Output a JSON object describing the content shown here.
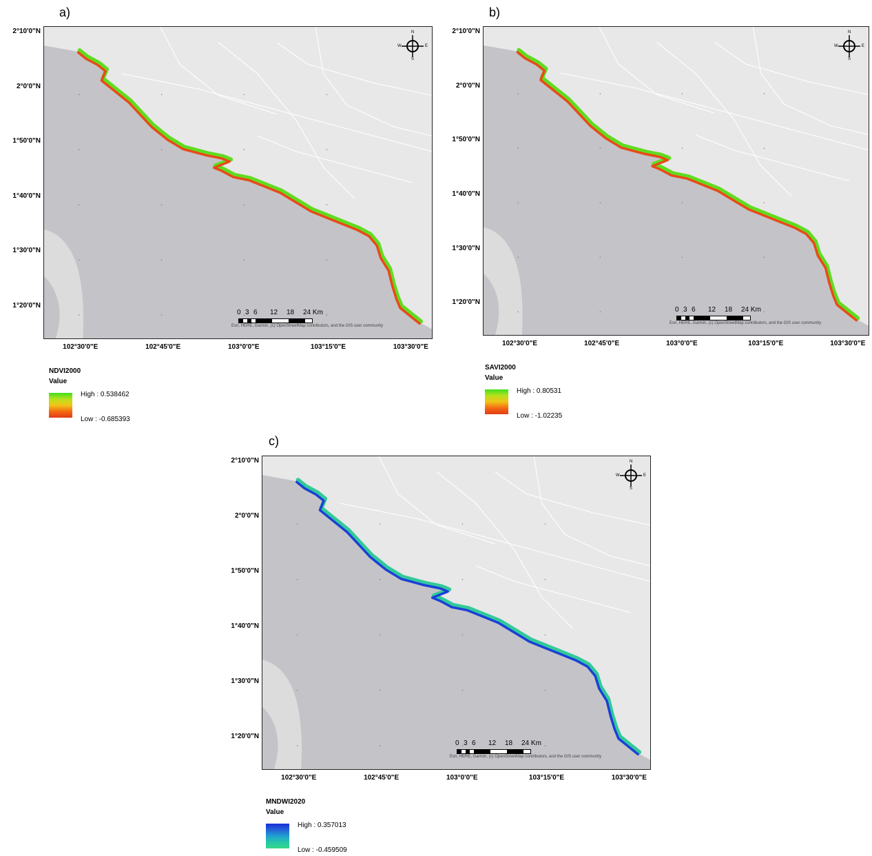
{
  "panels": [
    {
      "id": "a",
      "letter": "a)",
      "legend_title": "NDVI2000",
      "value_label": "Value",
      "high_label": "High : 0.538462",
      "low_label": "Low : -0.685393",
      "ramp_colors": [
        "#3fe01f",
        "#b8e11d",
        "#f0c419",
        "#f46a12",
        "#e23a16"
      ],
      "coast_outer": "#5fdc1f",
      "coast_inner": "#e84a17"
    },
    {
      "id": "b",
      "letter": "b)",
      "legend_title": "SAVI2000",
      "value_label": "Value",
      "high_label": "High : 0.80531",
      "low_label": "Low : -1.02235",
      "ramp_colors": [
        "#3fe01f",
        "#b8e11d",
        "#f0c419",
        "#f46a12",
        "#e23a16"
      ],
      "coast_outer": "#5fdc1f",
      "coast_inner": "#e84a17"
    },
    {
      "id": "c",
      "letter": "c)",
      "legend_title": "MNDWI2020",
      "value_label": "Value",
      "high_label": "High : 0.357013",
      "low_label": "Low : -0.459509",
      "ramp_colors": [
        "#1a2fd8",
        "#2563d8",
        "#1f9fd0",
        "#25c7a8",
        "#35d884"
      ],
      "coast_outer": "#31c99a",
      "coast_inner": "#1b3fd6"
    }
  ],
  "lat_labels": [
    "2°10'0\"N",
    "2°0'0\"N",
    "1°50'0\"N",
    "1°40'0\"N",
    "1°30'0\"N",
    "1°20'0\"N"
  ],
  "lon_labels": [
    "102°30'0\"E",
    "102°45'0\"E",
    "103°0'0\"E",
    "103°15'0\"E",
    "103°30'0\"E"
  ],
  "scale_ticks": [
    "0",
    "3",
    "6",
    "12",
    "18",
    "24 Km"
  ],
  "attribution": "Esri, HERE, Garmin, (c) OpenStreetMap contributors, and the GIS user community",
  "compass": {
    "n": "N",
    "s": "S",
    "e": "E",
    "w": "W"
  },
  "colors": {
    "sea": "#c4c3c8",
    "land": "#e8e8e8",
    "roads": "#ffffff",
    "land_patch": "#dcdcdc"
  }
}
